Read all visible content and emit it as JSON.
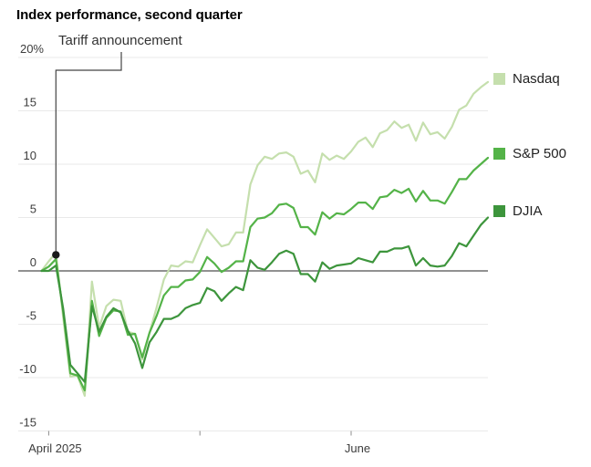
{
  "title": "Index performance, second quarter",
  "annotation": {
    "label": "Tariff announcement"
  },
  "legend": {
    "entries": [
      "Nasdaq",
      "S&P 500",
      "DJIA"
    ]
  },
  "colors": {
    "nasdaq": "#c5dfad",
    "sp500": "#54b348",
    "djia": "#3d953c",
    "zero_line": "#919191",
    "gridline": "#e9e9e9",
    "tick": "#8c8c8c",
    "axis_text": "#3c3c3c",
    "annotation_line": "#444444",
    "annotation_dot": "#1a1a1a"
  },
  "chart_data": {
    "type": "line",
    "title": "Index performance, second quarter",
    "unit": "%",
    "ylim": [
      -15,
      20
    ],
    "grid": "horizontal",
    "legend_position": "right",
    "y_axis": {
      "gridlines": [
        20,
        15,
        10,
        5,
        0,
        -5,
        -10,
        -15
      ],
      "labels": [
        "20%",
        "15",
        "10",
        "5",
        "0",
        "-5",
        "-10",
        "-15"
      ]
    },
    "x_axis": {
      "tick_indices": [
        1,
        22,
        43
      ],
      "tick_labels": [
        "April 2025",
        "",
        "June"
      ]
    },
    "annotation": {
      "label": "Tariff announcement",
      "x_index": 2,
      "value": 1.5
    },
    "x": [
      "Mar 31",
      "Apr 1",
      "Apr 2",
      "Apr 3",
      "Apr 4",
      "Apr 7",
      "Apr 8",
      "Apr 9",
      "Apr 10",
      "Apr 11",
      "Apr 14",
      "Apr 15",
      "Apr 16",
      "Apr 17",
      "Apr 21",
      "Apr 22",
      "Apr 23",
      "Apr 24",
      "Apr 25",
      "Apr 28",
      "Apr 29",
      "Apr 30",
      "May 1",
      "May 2",
      "May 5",
      "May 6",
      "May 7",
      "May 8",
      "May 9",
      "May 12",
      "May 13",
      "May 14",
      "May 15",
      "May 16",
      "May 19",
      "May 20",
      "May 21",
      "May 22",
      "May 23",
      "May 27",
      "May 28",
      "May 29",
      "May 30",
      "Jun 2",
      "Jun 3",
      "Jun 4",
      "Jun 5",
      "Jun 6",
      "Jun 9",
      "Jun 10",
      "Jun 11",
      "Jun 12",
      "Jun 13",
      "Jun 16",
      "Jun 17",
      "Jun 18",
      "Jun 20",
      "Jun 23",
      "Jun 24",
      "Jun 25",
      "Jun 26",
      "Jun 27",
      "Jun 30"
    ],
    "series": [
      {
        "name": "Nasdaq",
        "color": "#c5dfad",
        "values": [
          0,
          0.9,
          1.7,
          -4.3,
          -9.9,
          -9.8,
          -11.7,
          -1.0,
          -5.3,
          -3.3,
          -2.7,
          -2.8,
          -5.7,
          -5.9,
          -8.3,
          -5.8,
          -3.4,
          -0.8,
          0.5,
          0.4,
          0.9,
          0.8,
          2.4,
          3.9,
          3.1,
          2.3,
          2.5,
          3.6,
          3.6,
          8.1,
          9.9,
          10.7,
          10.5,
          11.0,
          11.1,
          10.7,
          9.1,
          9.4,
          8.3,
          11.0,
          10.4,
          10.8,
          10.5,
          11.2,
          12.1,
          12.5,
          11.6,
          12.9,
          13.2,
          14.0,
          13.4,
          13.7,
          12.2,
          13.9,
          12.8,
          13.0,
          12.4,
          13.5,
          15.1,
          15.5,
          16.6,
          17.2,
          17.7
        ]
      },
      {
        "name": "S&P 500",
        "color": "#54b348",
        "values": [
          0,
          0.4,
          1.1,
          -3.8,
          -9.6,
          -9.8,
          -11.2,
          -2.8,
          -6.1,
          -4.4,
          -3.7,
          -3.8,
          -6.0,
          -5.9,
          -8.1,
          -5.8,
          -4.2,
          -2.3,
          -1.5,
          -1.5,
          -0.9,
          -0.8,
          -0.1,
          1.3,
          0.7,
          -0.1,
          0.3,
          0.9,
          0.9,
          4.1,
          4.9,
          5.0,
          5.4,
          6.2,
          6.3,
          5.9,
          4.1,
          4.1,
          3.4,
          5.5,
          4.9,
          5.4,
          5.3,
          5.8,
          6.4,
          6.4,
          5.8,
          6.9,
          7.0,
          7.6,
          7.3,
          7.7,
          6.5,
          7.5,
          6.6,
          6.6,
          6.3,
          7.4,
          8.6,
          8.6,
          9.4,
          10.0,
          10.6
        ]
      },
      {
        "name": "DJIA",
        "color": "#3d953c",
        "values": [
          0,
          0.0,
          0.5,
          -3.5,
          -8.8,
          -9.6,
          -10.4,
          -3.3,
          -5.7,
          -4.3,
          -3.5,
          -3.9,
          -5.6,
          -6.8,
          -9.1,
          -6.7,
          -5.7,
          -4.5,
          -4.5,
          -4.2,
          -3.5,
          -3.2,
          -3.0,
          -1.6,
          -1.9,
          -2.8,
          -2.1,
          -1.5,
          -1.8,
          1.0,
          0.3,
          0.1,
          0.8,
          1.6,
          1.9,
          1.6,
          -0.3,
          -0.3,
          -1.0,
          0.8,
          0.2,
          0.5,
          0.6,
          0.7,
          1.2,
          1.0,
          0.8,
          1.8,
          1.8,
          2.1,
          2.1,
          2.3,
          0.5,
          1.2,
          0.5,
          0.4,
          0.5,
          1.4,
          2.6,
          2.3,
          3.3,
          4.3,
          5.0
        ]
      }
    ]
  }
}
